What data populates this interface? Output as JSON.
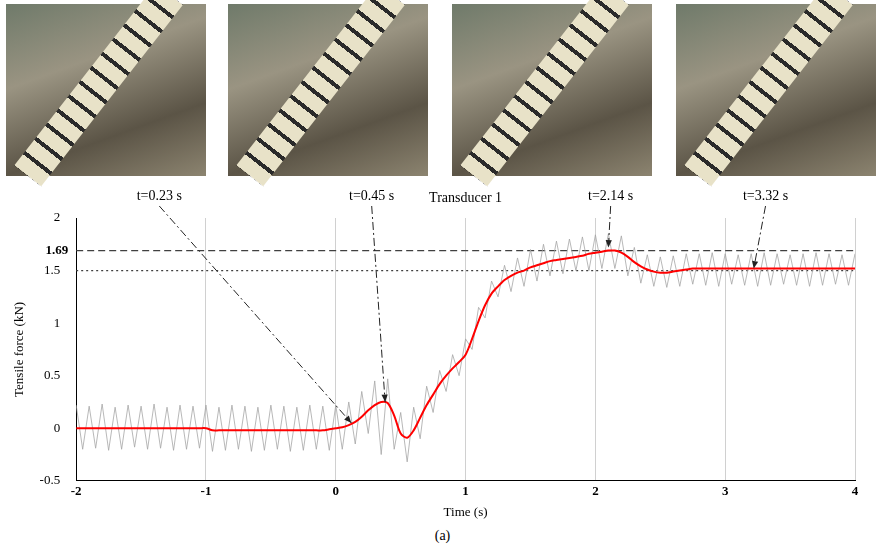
{
  "chart_data": {
    "type": "line",
    "title": "Transducer 1",
    "caption": "(a)",
    "x_label": "Time (s)",
    "y_label": "Tensile force (kN)",
    "xlim": [
      -2,
      4
    ],
    "xticks": [
      -2,
      -1,
      0,
      1,
      2,
      3,
      4
    ],
    "ylim": [
      -0.5,
      2
    ],
    "yticks": [
      -0.5,
      0,
      0.5,
      1,
      1.5,
      2
    ],
    "grid": "x",
    "reference_lines": [
      {
        "value": 1.69,
        "label": "1.69",
        "line_style": "dashed"
      },
      {
        "value": 1.5,
        "line_style": "dotted"
      }
    ],
    "annotations": [
      {
        "text": "t=0.23 s",
        "x": 0.12,
        "y": 0.05
      },
      {
        "text": "t=0.45 s",
        "x": 0.38,
        "y": 0.25
      },
      {
        "text": "t=2.14 s",
        "x": 2.1,
        "y": 1.72
      },
      {
        "text": "t=3.32 s",
        "x": 3.22,
        "y": 1.52
      }
    ],
    "x": [
      -2,
      -1.95,
      -1.9,
      -1.85,
      -1.8,
      -1.75,
      -1.7,
      -1.65,
      -1.6,
      -1.55,
      -1.5,
      -1.45,
      -1.4,
      -1.35,
      -1.3,
      -1.25,
      -1.2,
      -1.15,
      -1.1,
      -1.05,
      -1,
      -0.95,
      -0.9,
      -0.85,
      -0.8,
      -0.75,
      -0.7,
      -0.65,
      -0.6,
      -0.55,
      -0.5,
      -0.45,
      -0.4,
      -0.35,
      -0.3,
      -0.25,
      -0.2,
      -0.15,
      -0.1,
      -0.05,
      0,
      0.05,
      0.1,
      0.15,
      0.2,
      0.25,
      0.3,
      0.35,
      0.4,
      0.45,
      0.5,
      0.55,
      0.6,
      0.65,
      0.7,
      0.75,
      0.8,
      0.85,
      0.9,
      0.95,
      1,
      1.05,
      1.1,
      1.15,
      1.2,
      1.25,
      1.3,
      1.35,
      1.4,
      1.45,
      1.5,
      1.55,
      1.6,
      1.65,
      1.7,
      1.75,
      1.8,
      1.85,
      1.9,
      1.95,
      2,
      2.05,
      2.1,
      2.15,
      2.2,
      2.25,
      2.3,
      2.35,
      2.4,
      2.45,
      2.5,
      2.55,
      2.6,
      2.65,
      2.7,
      2.75,
      2.8,
      2.85,
      2.9,
      2.95,
      3,
      3.05,
      3.1,
      3.15,
      3.2,
      3.25,
      3.3,
      3.35,
      3.4,
      3.45,
      3.5,
      3.55,
      3.6,
      3.65,
      3.7,
      3.75,
      3.8,
      3.85,
      3.9,
      3.95,
      4
    ],
    "series": [
      {
        "color": "#a6a6a6",
        "values": [
          0.22,
          -0.2,
          0.21,
          -0.19,
          0.23,
          -0.21,
          0.2,
          -0.2,
          0.22,
          -0.18,
          0.21,
          -0.2,
          0.23,
          -0.19,
          0.2,
          -0.21,
          0.22,
          -0.2,
          0.21,
          -0.19,
          0.22,
          -0.22,
          0.2,
          -0.21,
          0.22,
          -0.2,
          0.21,
          -0.22,
          0.2,
          -0.21,
          0.22,
          -0.2,
          0.21,
          -0.22,
          0.2,
          -0.21,
          0.22,
          -0.2,
          0.21,
          -0.21,
          0.22,
          -0.2,
          0.25,
          -0.15,
          0.35,
          -0.05,
          0.45,
          -0.25,
          0.47,
          -0.2,
          0.15,
          -0.32,
          0.2,
          -0.1,
          0.4,
          0.15,
          0.55,
          0.35,
          0.7,
          0.5,
          0.85,
          0.75,
          1.15,
          1.05,
          1.4,
          1.25,
          1.55,
          1.3,
          1.62,
          1.35,
          1.7,
          1.4,
          1.75,
          1.45,
          1.78,
          1.47,
          1.8,
          1.5,
          1.82,
          1.5,
          1.84,
          1.52,
          1.85,
          1.52,
          1.83,
          1.45,
          1.72,
          1.38,
          1.65,
          1.35,
          1.63,
          1.34,
          1.64,
          1.35,
          1.66,
          1.37,
          1.66,
          1.36,
          1.67,
          1.35,
          1.66,
          1.37,
          1.65,
          1.36,
          1.66,
          1.35,
          1.67,
          1.36,
          1.66,
          1.37,
          1.65,
          1.36,
          1.66,
          1.35,
          1.67,
          1.36,
          1.66,
          1.37,
          1.65,
          1.36,
          1.66
        ]
      },
      {
        "color": "#ff0000",
        "values": [
          0,
          0,
          0,
          0,
          0,
          0,
          0,
          0,
          0,
          0,
          0,
          0,
          0,
          0,
          0,
          0,
          0,
          0,
          0,
          0,
          0,
          -0.02,
          -0.02,
          -0.02,
          -0.02,
          -0.02,
          -0.02,
          -0.02,
          -0.02,
          -0.02,
          -0.02,
          -0.02,
          -0.02,
          -0.02,
          -0.02,
          -0.02,
          -0.02,
          -0.02,
          -0.02,
          -0.01,
          0,
          0.01,
          0.03,
          0.06,
          0.11,
          0.17,
          0.22,
          0.25,
          0.24,
          0.12,
          -0.05,
          -0.09,
          -0.02,
          0.1,
          0.22,
          0.32,
          0.42,
          0.5,
          0.57,
          0.63,
          0.7,
          0.85,
          1.02,
          1.17,
          1.28,
          1.35,
          1.41,
          1.45,
          1.48,
          1.5,
          1.53,
          1.55,
          1.57,
          1.59,
          1.6,
          1.61,
          1.62,
          1.63,
          1.64,
          1.66,
          1.67,
          1.68,
          1.69,
          1.69,
          1.67,
          1.63,
          1.58,
          1.54,
          1.51,
          1.49,
          1.48,
          1.48,
          1.49,
          1.5,
          1.51,
          1.52,
          1.52,
          1.52,
          1.52,
          1.52,
          1.52,
          1.52,
          1.52,
          1.52,
          1.52,
          1.52,
          1.52,
          1.52,
          1.52,
          1.52,
          1.52,
          1.52,
          1.52,
          1.52,
          1.52,
          1.52,
          1.52,
          1.52,
          1.52,
          1.52,
          1.52
        ]
      }
    ]
  }
}
